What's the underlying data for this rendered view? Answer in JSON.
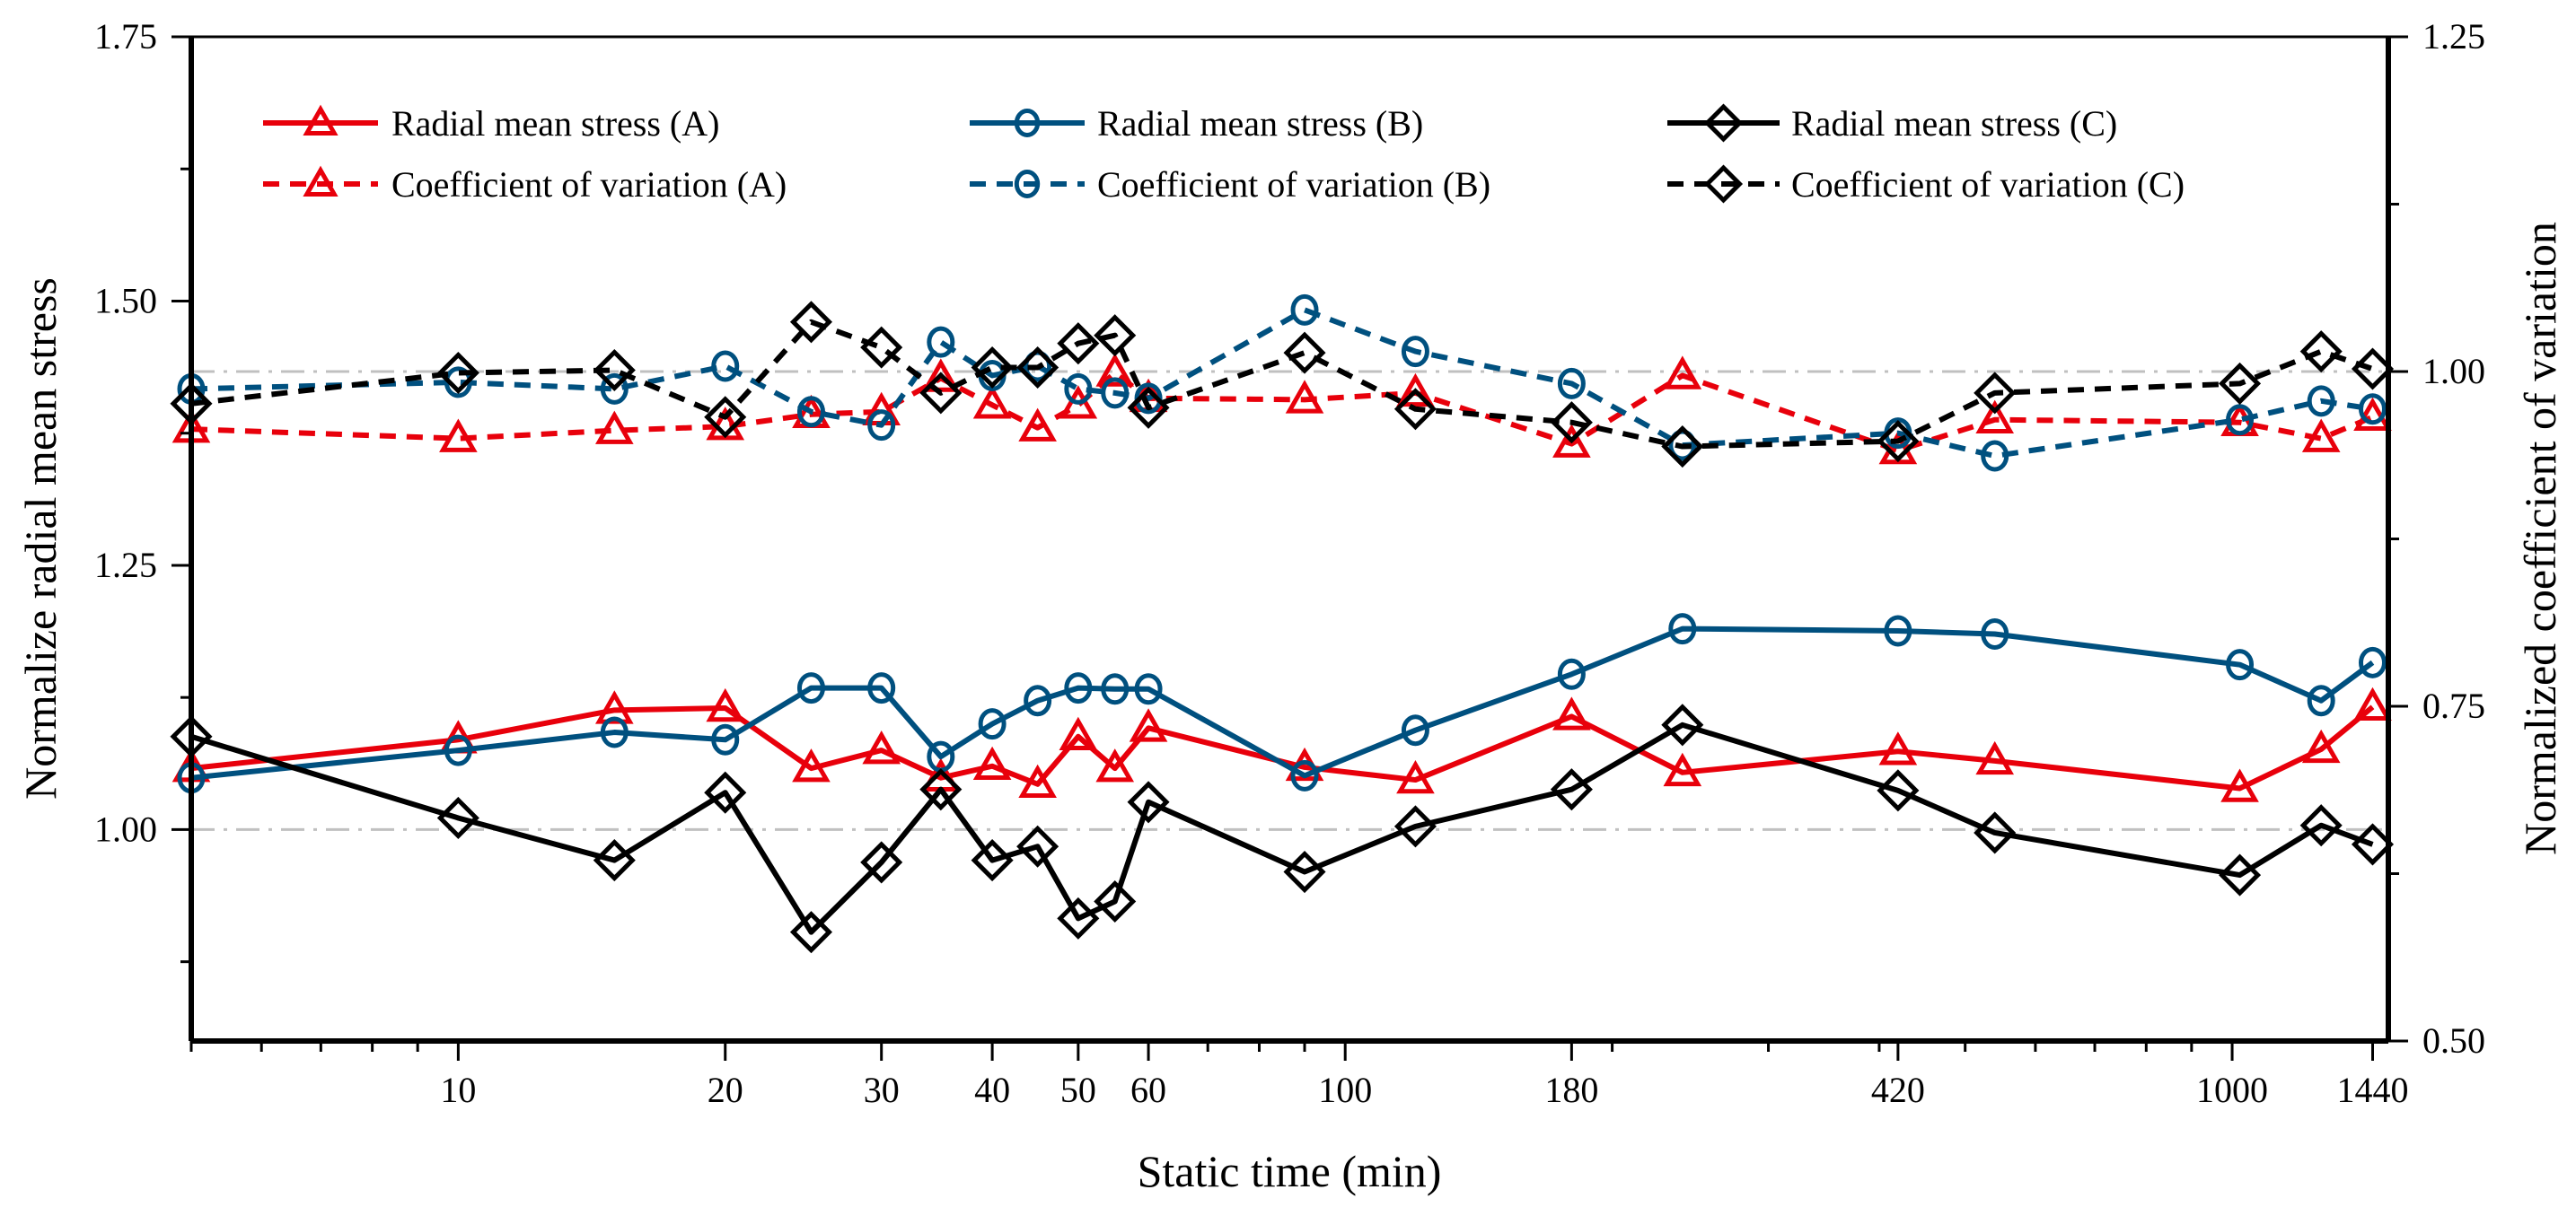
{
  "chart_data": {
    "type": "line",
    "xlabel": "Static time (min)",
    "ylabel": "Normalize radial mean stress",
    "y2label": "Normalized coefficient of variation",
    "xscale": "log",
    "xlim": [
      5,
      1500
    ],
    "ylim": [
      0.8,
      1.75
    ],
    "y2lim": [
      0.5,
      1.25
    ],
    "xticks": [
      10,
      20,
      30,
      40,
      50,
      60,
      100,
      180,
      420,
      1000,
      1440
    ],
    "xtick_labels": [
      "10",
      "20",
      "30",
      "40",
      "50",
      "60",
      "100",
      "180",
      "420",
      "1000",
      "1440"
    ],
    "xminor_ticks": [
      5,
      6,
      7,
      8,
      9,
      70,
      80,
      90,
      200,
      300,
      400,
      500,
      600,
      700,
      800,
      900
    ],
    "yticks": [
      1.0,
      1.25,
      1.5,
      1.75
    ],
    "ytick_labels": [
      "1.00",
      "1.25",
      "1.50",
      "1.75"
    ],
    "yminor_ticks": [
      0.875,
      1.125,
      1.375,
      1.625
    ],
    "y2ticks": [
      0.5,
      0.75,
      1.0,
      1.25
    ],
    "y2tick_labels": [
      "0.50",
      "0.75",
      "1.00",
      "1.25"
    ],
    "y2minor_ticks": [
      0.625,
      0.875,
      1.125
    ],
    "reference_lines": [
      {
        "axis": "left",
        "value": 1.0,
        "style": "dash-dot",
        "color": "#c0c0c0"
      },
      {
        "axis": "right",
        "value": 1.0,
        "style": "dash-dot",
        "color": "#c0c0c0"
      }
    ],
    "grid": false,
    "legend_position": "top",
    "x": [
      5,
      10,
      15,
      20,
      25,
      30,
      35,
      40,
      45,
      50,
      55,
      60,
      90,
      120,
      180,
      240,
      420,
      540,
      1020,
      1260,
      1440
    ],
    "series": [
      {
        "name": "Radial mean stress (A)",
        "axis": "left",
        "style": "solid",
        "marker": "triangle",
        "color": "#e8000b",
        "values": [
          1.058,
          1.085,
          1.113,
          1.115,
          1.058,
          1.075,
          1.049,
          1.06,
          1.043,
          1.088,
          1.058,
          1.096,
          1.059,
          1.047,
          1.107,
          1.054,
          1.074,
          1.065,
          1.039,
          1.076,
          1.116
        ]
      },
      {
        "name": "Radial mean stress (B)",
        "axis": "left",
        "style": "solid",
        "marker": "circle",
        "color": "#00507f",
        "values": [
          1.049,
          1.075,
          1.092,
          1.085,
          1.134,
          1.134,
          1.069,
          1.1,
          1.122,
          1.134,
          1.133,
          1.133,
          1.051,
          1.094,
          1.147,
          1.19,
          1.188,
          1.185,
          1.156,
          1.122,
          1.158
        ]
      },
      {
        "name": "Radial mean stress (C)",
        "axis": "left",
        "style": "solid",
        "marker": "diamond",
        "color": "#000000",
        "values": [
          1.088,
          1.011,
          0.971,
          1.035,
          0.903,
          0.969,
          1.038,
          0.971,
          0.984,
          0.916,
          0.932,
          1.026,
          0.96,
          1.003,
          1.038,
          1.099,
          1.037,
          0.997,
          0.957,
          1.004,
          0.986
        ]
      },
      {
        "name": "Coefficient of variation (A)",
        "axis": "right",
        "style": "dashed",
        "marker": "triangle",
        "color": "#e8000b",
        "values": [
          0.957,
          0.95,
          0.956,
          0.959,
          0.968,
          0.97,
          0.995,
          0.975,
          0.958,
          0.975,
          0.999,
          0.98,
          0.979,
          0.984,
          0.946,
          0.997,
          0.941,
          0.964,
          0.962,
          0.95,
          0.966
        ]
      },
      {
        "name": "Coefficient of variation (B)",
        "axis": "right",
        "style": "dashed",
        "marker": "circle",
        "color": "#00507f",
        "values": [
          0.987,
          0.992,
          0.987,
          1.004,
          0.97,
          0.96,
          1.022,
          0.997,
          1.004,
          0.987,
          0.984,
          0.98,
          1.046,
          1.015,
          0.991,
          0.945,
          0.954,
          0.937,
          0.964,
          0.978,
          0.972
        ]
      },
      {
        "name": "Coefficient of variation (C)",
        "axis": "right",
        "style": "dashed",
        "marker": "diamond",
        "color": "#000000",
        "values": [
          0.976,
          0.999,
          1.001,
          0.966,
          1.037,
          1.018,
          0.984,
          1.003,
          1.003,
          1.021,
          1.027,
          0.973,
          1.014,
          0.972,
          0.962,
          0.944,
          0.948,
          0.984,
          0.991,
          1.015,
          1.002
        ]
      }
    ]
  }
}
